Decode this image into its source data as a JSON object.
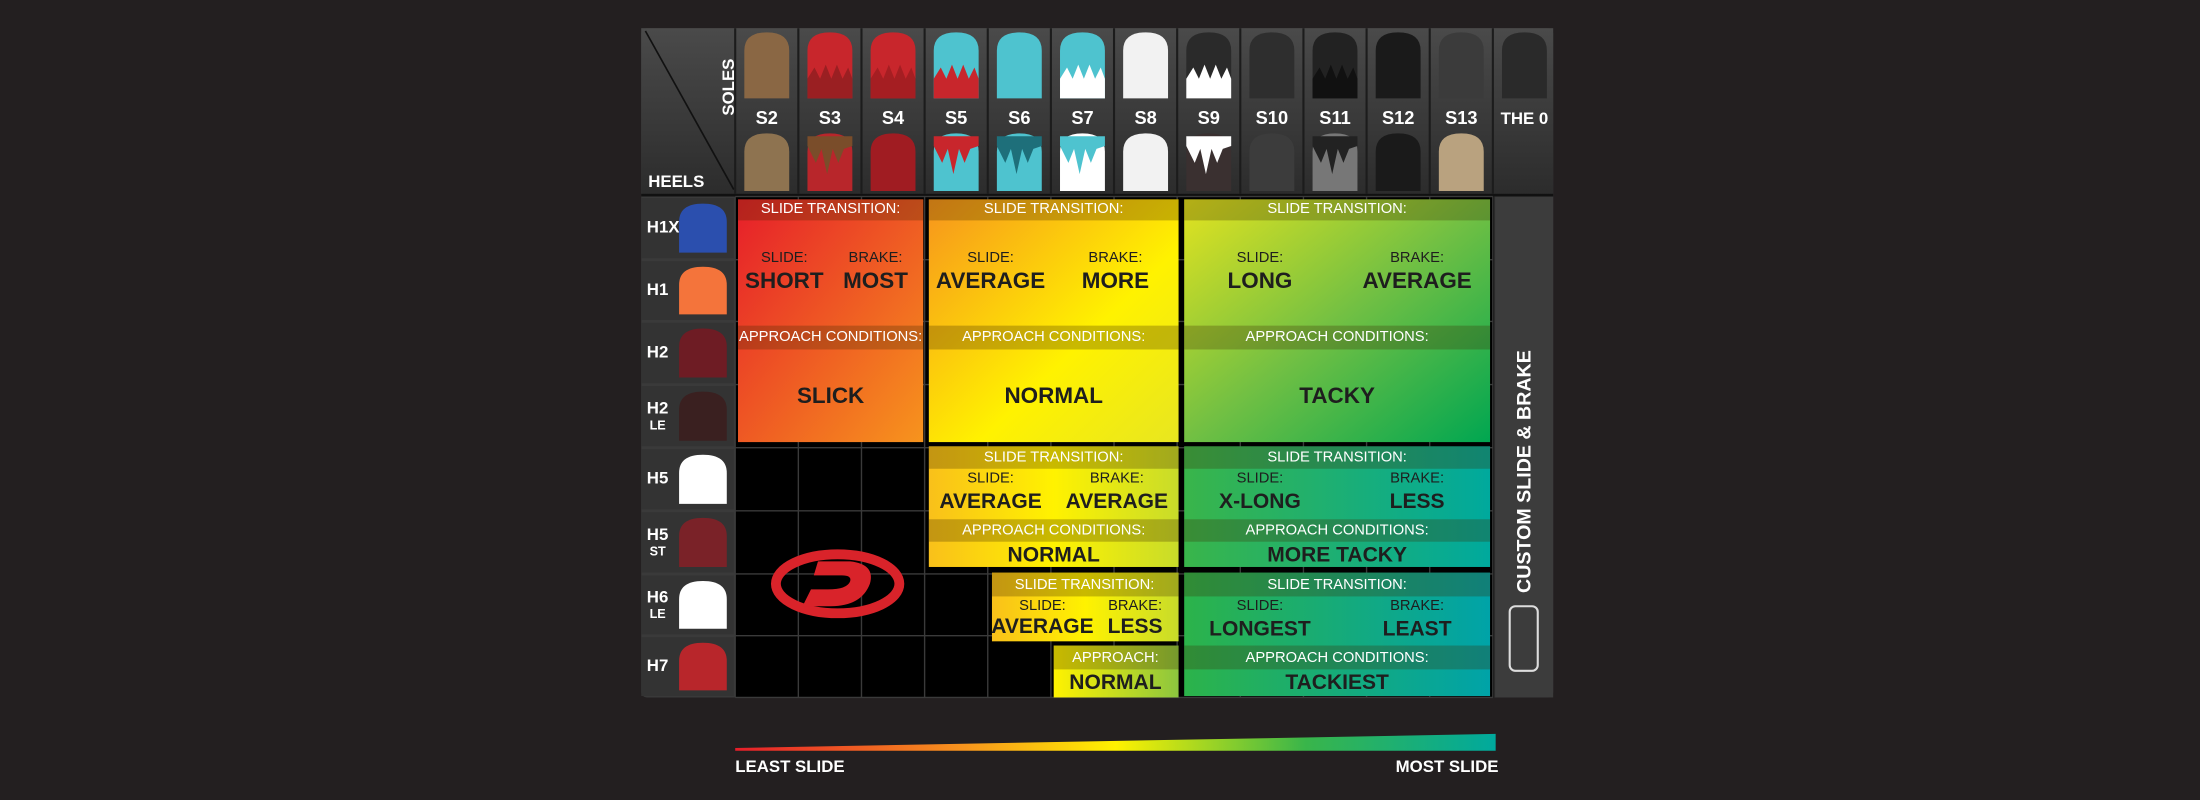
{
  "header": {
    "soles_label": "SOLES",
    "heels_label": "HEELS"
  },
  "soles": [
    "S2",
    "S3",
    "S4",
    "S5",
    "S6",
    "S7",
    "S8",
    "S9",
    "S10",
    "S11",
    "S12",
    "S13",
    "THE 0"
  ],
  "heels": [
    {
      "label": "H1X"
    },
    {
      "label": "H1"
    },
    {
      "label": "H2"
    },
    {
      "label": "H2",
      "sub": "LE"
    },
    {
      "label": "H5"
    },
    {
      "label": "H5",
      "sub": "ST"
    },
    {
      "label": "H6",
      "sub": "LE"
    },
    {
      "label": "H7"
    }
  ],
  "blocks": [
    {
      "transition_label": "SLIDE TRANSITION:",
      "slide_label": "SLIDE:",
      "slide": "SHORT",
      "brake_label": "BRAKE:",
      "brake": "MOST",
      "conditions_label": "APPROACH CONDITIONS:",
      "conditions": "SLICK"
    },
    {
      "transition_label": "SLIDE TRANSITION:",
      "slide_label": "SLIDE:",
      "slide": "AVERAGE",
      "brake_label": "BRAKE:",
      "brake": "MORE",
      "conditions_label": "APPROACH CONDITIONS:",
      "conditions": "NORMAL"
    },
    {
      "transition_label": "SLIDE TRANSITION:",
      "slide_label": "SLIDE:",
      "slide": "LONG",
      "brake_label": "BRAKE:",
      "brake": "AVERAGE",
      "conditions_label": "APPROACH CONDITIONS:",
      "conditions": "TACKY"
    },
    {
      "transition_label": "SLIDE TRANSITION:",
      "slide_label": "SLIDE:",
      "slide": "AVERAGE",
      "brake_label": "BRAKE:",
      "brake": "AVERAGE",
      "conditions_label": "APPROACH CONDITIONS:",
      "conditions": "NORMAL"
    },
    {
      "transition_label": "SLIDE TRANSITION:",
      "slide_label": "SLIDE:",
      "slide": "X-LONG",
      "brake_label": "BRAKE:",
      "brake": "LESS",
      "conditions_label": "APPROACH CONDITIONS:",
      "conditions": "MORE TACKY"
    },
    {
      "transition_label": "SLIDE TRANSITION:",
      "slide_label": "SLIDE:",
      "slide": "AVERAGE",
      "brake_label": "BRAKE:",
      "brake": "LESS",
      "conditions_label": "APPROACH:",
      "conditions": "NORMAL"
    },
    {
      "transition_label": "SLIDE TRANSITION:",
      "slide_label": "SLIDE:",
      "slide": "LONGEST",
      "brake_label": "BRAKE:",
      "brake": "LEAST",
      "conditions_label": "APPROACH CONDITIONS:",
      "conditions": "TACKIEST"
    }
  ],
  "side_label": "CUSTOM SLIDE & BRAKE",
  "legend": {
    "start": "LEAST SLIDE",
    "end": "MOST SLIDE"
  }
}
